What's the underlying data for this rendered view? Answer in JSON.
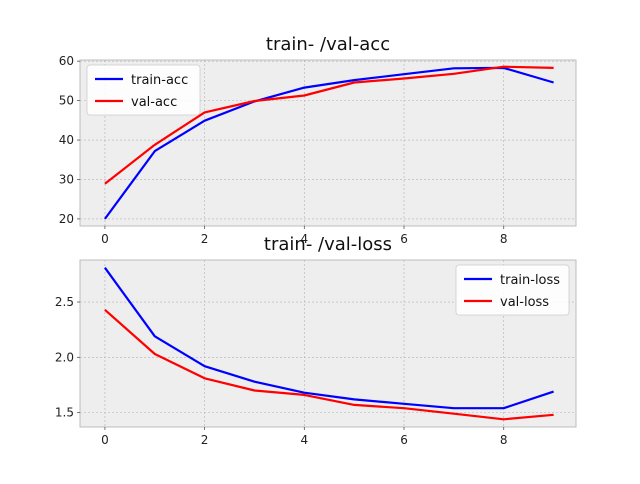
{
  "chart_data": [
    {
      "type": "line",
      "title": "train- /val-acc",
      "x": [
        0,
        1,
        2,
        3,
        4,
        5,
        6,
        7,
        8,
        9
      ],
      "xlim": [
        -0.5,
        9.45
      ],
      "ylim": [
        18.2,
        60.3
      ],
      "xticks": [
        0,
        2,
        4,
        6,
        8
      ],
      "yticks": [
        20,
        30,
        40,
        50,
        60
      ],
      "grid": true,
      "legend_position": "upper left",
      "series": [
        {
          "name": "train-acc",
          "color": "#0000ff",
          "values": [
            20.0,
            37.2,
            44.9,
            49.8,
            53.3,
            55.2,
            56.7,
            58.2,
            58.3,
            54.6
          ]
        },
        {
          "name": "val-acc",
          "color": "#ff0000",
          "values": [
            28.9,
            38.8,
            47.0,
            49.9,
            51.3,
            54.6,
            55.6,
            56.8,
            58.6,
            58.3
          ]
        }
      ]
    },
    {
      "type": "line",
      "title": "train- /val-loss",
      "x": [
        0,
        1,
        2,
        3,
        4,
        5,
        6,
        7,
        8,
        9
      ],
      "xlim": [
        -0.5,
        9.45
      ],
      "ylim": [
        1.37,
        2.88
      ],
      "xticks": [
        0,
        2,
        4,
        6,
        8
      ],
      "yticks": [
        1.5,
        2.0,
        2.5
      ],
      "grid": true,
      "legend_position": "upper right",
      "series": [
        {
          "name": "train-loss",
          "color": "#0000ff",
          "values": [
            2.81,
            2.19,
            1.92,
            1.78,
            1.68,
            1.62,
            1.58,
            1.54,
            1.54,
            1.69
          ]
        },
        {
          "name": "val-loss",
          "color": "#ff0000",
          "values": [
            2.43,
            2.03,
            1.81,
            1.7,
            1.66,
            1.57,
            1.54,
            1.49,
            1.44,
            1.48
          ]
        }
      ]
    }
  ]
}
